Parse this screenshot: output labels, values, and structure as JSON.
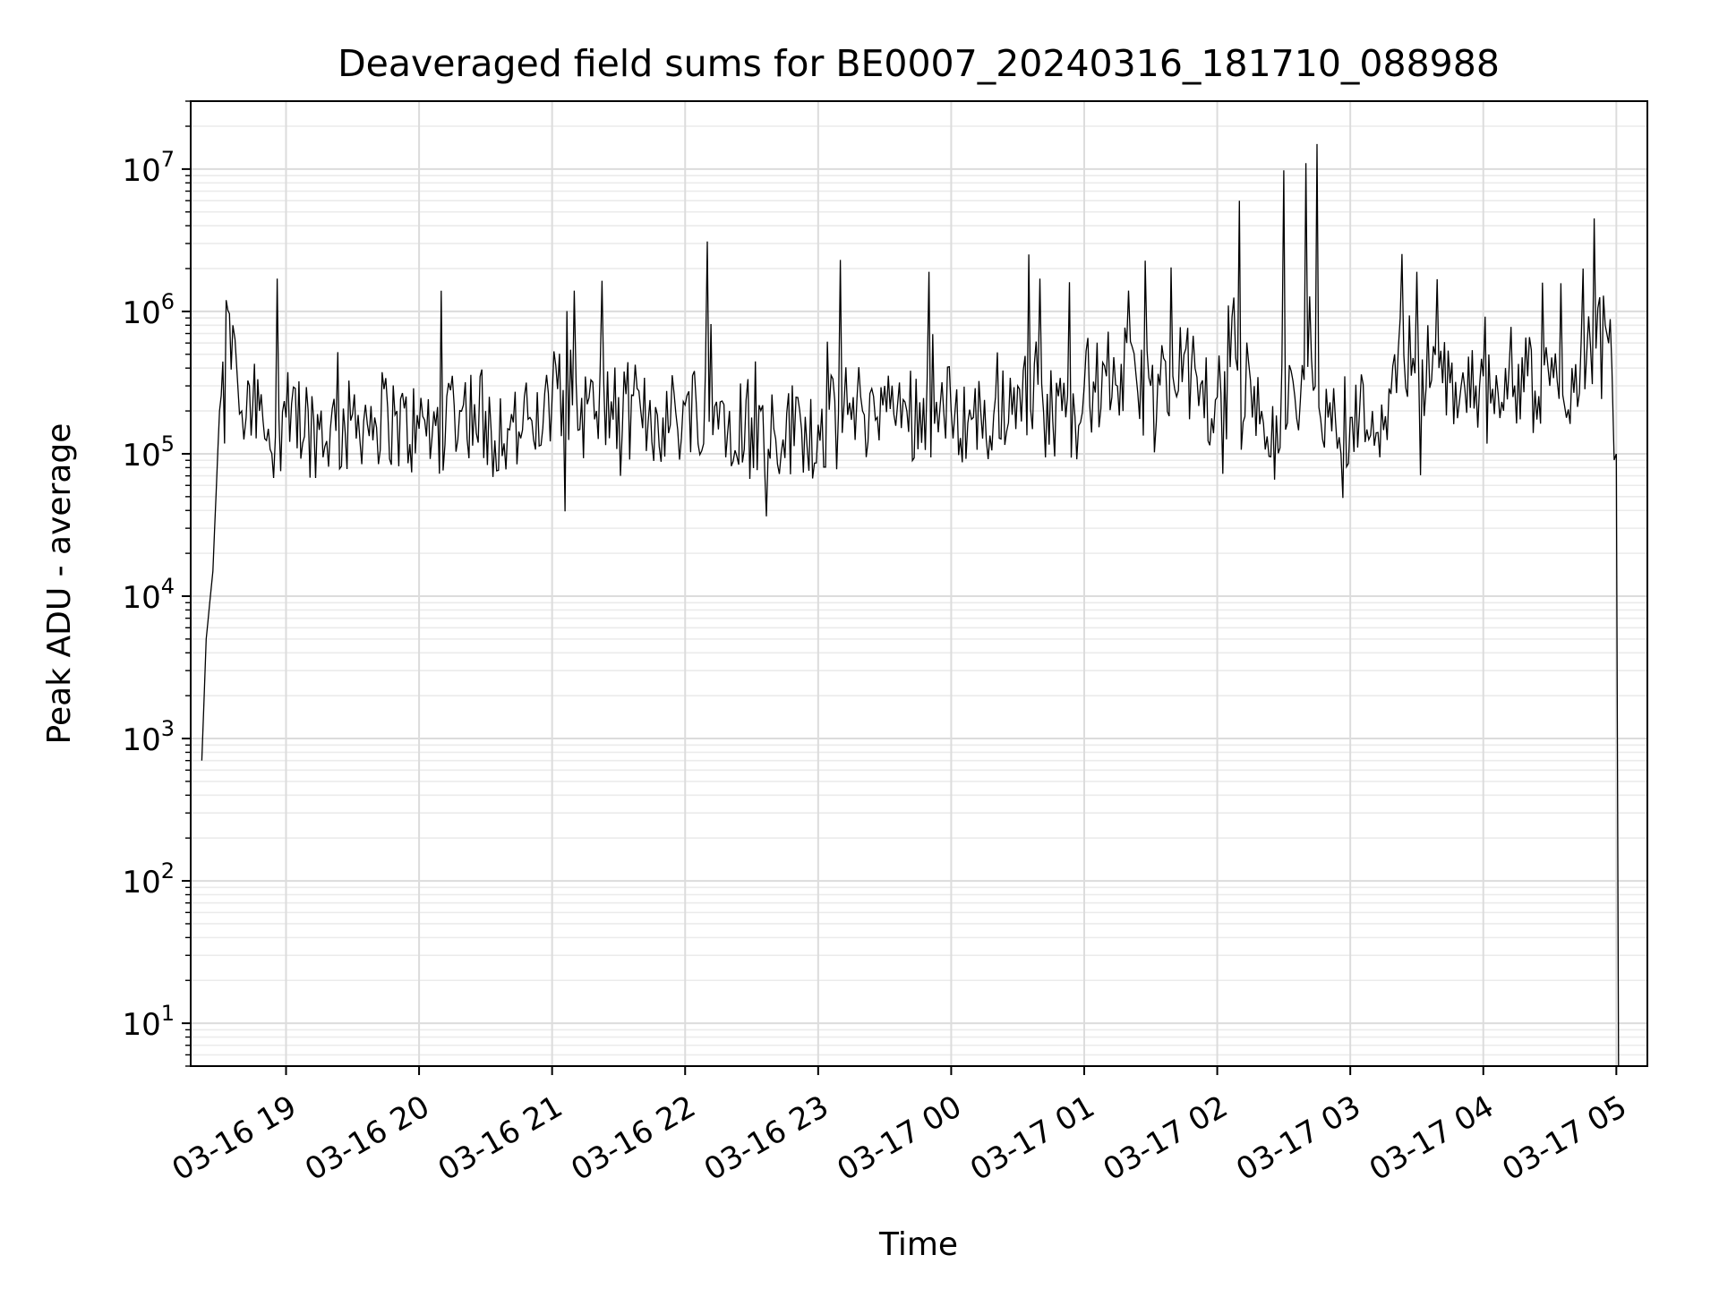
{
  "chart_data": {
    "type": "line",
    "title": "Deaveraged field sums for BE0007_20240316_181710_088988",
    "xlabel": "Time",
    "ylabel": "Peak ADU - average",
    "yscale": "log",
    "grid": "on",
    "legend": "none",
    "x_tick_labels": [
      "03-16 19",
      "03-16 20",
      "03-16 21",
      "03-16 22",
      "03-16 23",
      "03-17 00",
      "03-17 01",
      "03-17 02",
      "03-17 03",
      "03-17 04",
      "03-17 05"
    ],
    "y_ticks": [
      {
        "value": 10,
        "base": "10",
        "exp": "1"
      },
      {
        "value": 100,
        "base": "10",
        "exp": "2"
      },
      {
        "value": 1000,
        "base": "10",
        "exp": "3"
      },
      {
        "value": 10000,
        "base": "10",
        "exp": "4"
      },
      {
        "value": 100000,
        "base": "10",
        "exp": "5"
      },
      {
        "value": 1000000,
        "base": "10",
        "exp": "6"
      },
      {
        "value": 10000000,
        "base": "10",
        "exp": "7"
      }
    ],
    "xlim": [
      "2024-03-16 18:17",
      "2024-03-17 05:14"
    ],
    "ylim": [
      5,
      30000000
    ],
    "series": [
      {
        "color": "#000000",
        "x": [
          "2024-03-16 18:22",
          "2024-03-16 18:24",
          "2024-03-16 18:27",
          "2024-03-16 18:30",
          "2024-03-16 18:33",
          "2024-03-16 18:36",
          "2024-03-16 18:38",
          "2024-03-16 18:40",
          "2024-03-16 18:42",
          "2024-03-16 18:45",
          "2024-03-16 18:48",
          "2024-03-16 18:52",
          "2024-03-16 18:56",
          "2024-03-16 19:00",
          "2024-03-16 19:10",
          "2024-03-16 19:20",
          "2024-03-16 19:30",
          "2024-03-16 19:40",
          "2024-03-16 19:50",
          "2024-03-16 20:00",
          "2024-03-16 20:10",
          "2024-03-16 20:20",
          "2024-03-16 20:30",
          "2024-03-16 20:40",
          "2024-03-16 20:50",
          "2024-03-16 21:00",
          "2024-03-16 21:10",
          "2024-03-16 21:20",
          "2024-03-16 21:30",
          "2024-03-16 21:40",
          "2024-03-16 21:50",
          "2024-03-16 22:00",
          "2024-03-16 22:10",
          "2024-03-16 22:20",
          "2024-03-16 22:30",
          "2024-03-16 22:40",
          "2024-03-16 22:50",
          "2024-03-16 23:00",
          "2024-03-16 23:10",
          "2024-03-16 23:20",
          "2024-03-16 23:30",
          "2024-03-16 23:40",
          "2024-03-16 23:50",
          "2024-03-17 00:00",
          "2024-03-17 00:10",
          "2024-03-17 00:20",
          "2024-03-17 00:30",
          "2024-03-17 00:40",
          "2024-03-17 00:50",
          "2024-03-17 01:00",
          "2024-03-17 01:10",
          "2024-03-17 01:20",
          "2024-03-17 01:30",
          "2024-03-17 01:40",
          "2024-03-17 01:50",
          "2024-03-17 02:00",
          "2024-03-17 02:05",
          "2024-03-17 02:10",
          "2024-03-17 02:20",
          "2024-03-17 02:30",
          "2024-03-17 02:35",
          "2024-03-17 02:40",
          "2024-03-17 02:45",
          "2024-03-17 02:50",
          "2024-03-17 03:00",
          "2024-03-17 03:10",
          "2024-03-17 03:20",
          "2024-03-17 03:30",
          "2024-03-17 03:40",
          "2024-03-17 03:50",
          "2024-03-17 04:00",
          "2024-03-17 04:10",
          "2024-03-17 04:20",
          "2024-03-17 04:30",
          "2024-03-17 04:40",
          "2024-03-17 04:45",
          "2024-03-17 04:50",
          "2024-03-17 04:55",
          "2024-03-17 04:58",
          "2024-03-17 05:00",
          "2024-03-17 05:01"
        ],
        "y": [
          700,
          5000,
          15000,
          200000,
          1200000,
          800000,
          350000,
          200000,
          180000,
          220000,
          200000,
          150000,
          1700000,
          180000,
          200000,
          150000,
          190000,
          180000,
          200000,
          150000,
          1400000,
          220000,
          200000,
          150000,
          180000,
          250000,
          1400000,
          200000,
          250000,
          200000,
          180000,
          220000,
          3100000,
          200000,
          180000,
          150000,
          250000,
          160000,
          2300000,
          200000,
          300000,
          200000,
          1900000,
          200000,
          180000,
          250000,
          300000,
          1700000,
          200000,
          300000,
          350000,
          1400000,
          300000,
          350000,
          400000,
          250000,
          1100000,
          6000000,
          200000,
          9800000,
          250000,
          11000000,
          15000000,
          180000,
          180000,
          200000,
          500000,
          1900000,
          400000,
          300000,
          350000,
          400000,
          350000,
          300000,
          400000,
          2000000,
          4500000,
          800000,
          400000,
          100000,
          5
        ]
      }
    ]
  }
}
